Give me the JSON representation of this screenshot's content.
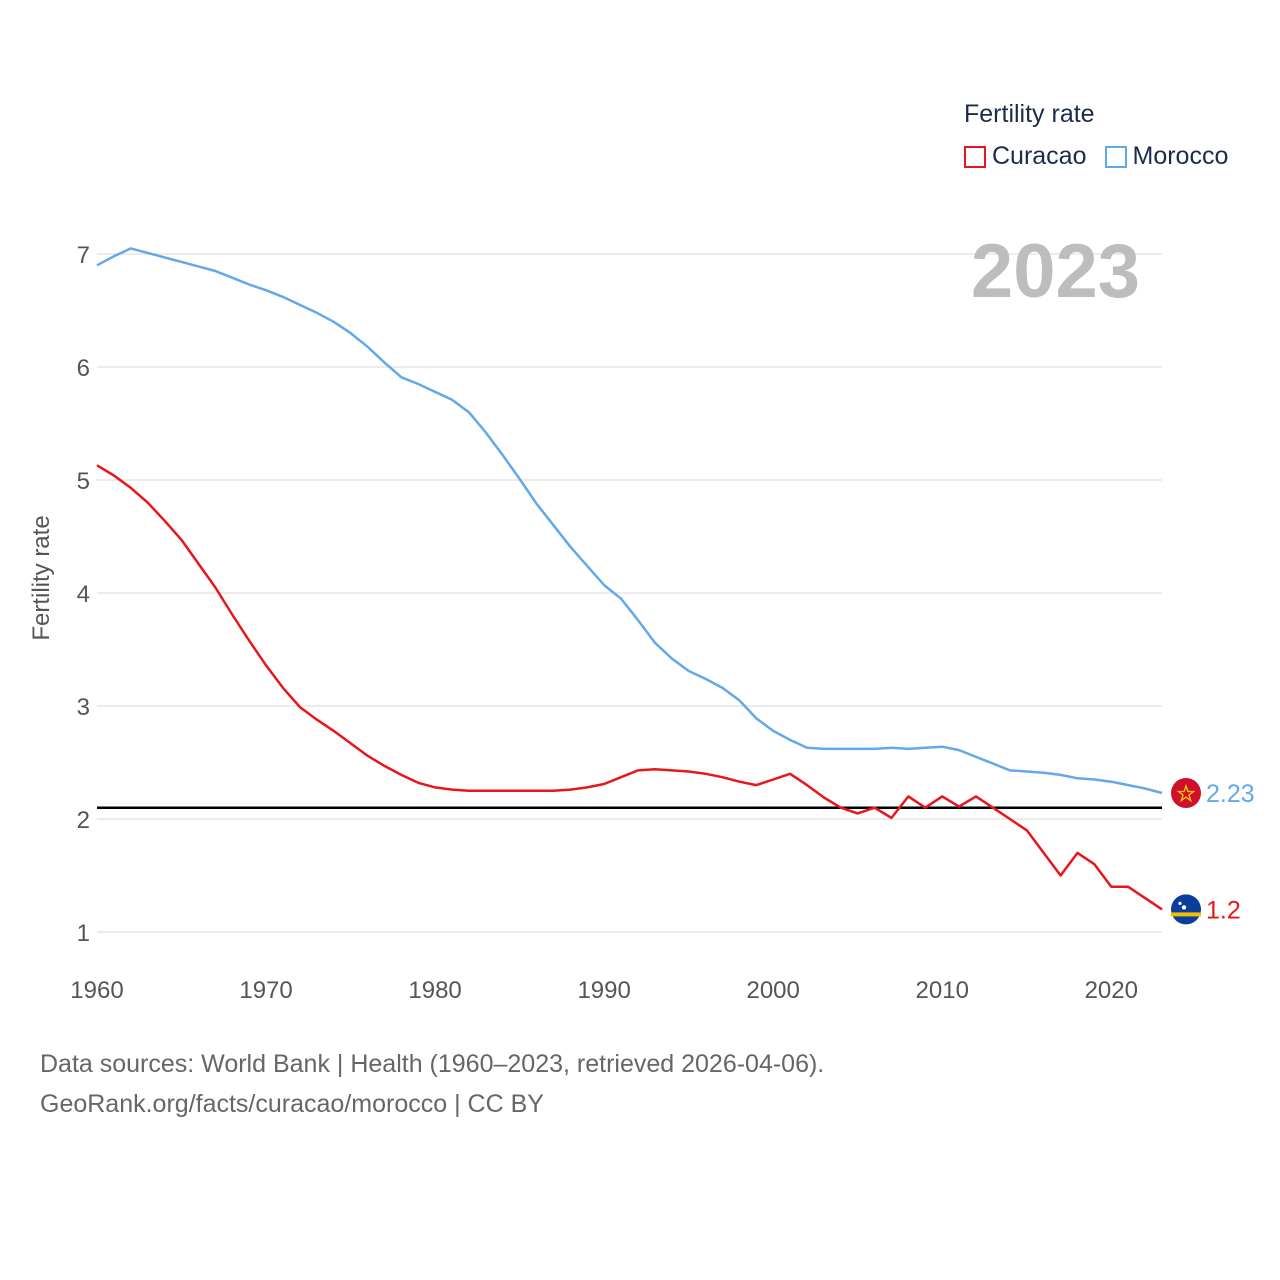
{
  "legend": {
    "title": "Fertility rate",
    "items": [
      {
        "label": "Curacao",
        "color": "#e8161b"
      },
      {
        "label": "Morocco",
        "color": "#63a8e8"
      }
    ]
  },
  "year_label": "2023",
  "footer": {
    "line1": "Data sources: World Bank | Health (1960–2023, retrieved 2026-04-06).",
    "line2": "GeoRank.org/facts/curacao/morocco | CC BY"
  },
  "chart_data": {
    "type": "line",
    "title": "",
    "xlabel": "",
    "ylabel": "Fertility rate",
    "xlim": [
      1960,
      2023
    ],
    "ylim": [
      1,
      7
    ],
    "xticks": [
      1960,
      1970,
      1980,
      1990,
      2000,
      2010,
      2020
    ],
    "yticks": [
      1,
      2,
      3,
      4,
      5,
      6,
      7
    ],
    "grid": true,
    "reference_line": 2.1,
    "x": [
      1960,
      1961,
      1962,
      1963,
      1964,
      1965,
      1966,
      1967,
      1968,
      1969,
      1970,
      1971,
      1972,
      1973,
      1974,
      1975,
      1976,
      1977,
      1978,
      1979,
      1980,
      1981,
      1982,
      1983,
      1984,
      1985,
      1986,
      1987,
      1988,
      1989,
      1990,
      1991,
      1992,
      1993,
      1994,
      1995,
      1996,
      1997,
      1998,
      1999,
      2000,
      2001,
      2002,
      2003,
      2004,
      2005,
      2006,
      2007,
      2008,
      2009,
      2010,
      2011,
      2012,
      2013,
      2014,
      2015,
      2016,
      2017,
      2018,
      2019,
      2020,
      2021,
      2022,
      2023
    ],
    "series": [
      {
        "name": "Curacao",
        "color": "#e8161b",
        "end_label": "1.2",
        "values": [
          5.13,
          5.04,
          4.93,
          4.8,
          4.64,
          4.47,
          4.26,
          4.05,
          3.81,
          3.58,
          3.36,
          3.16,
          2.99,
          2.88,
          2.78,
          2.67,
          2.56,
          2.47,
          2.39,
          2.32,
          2.28,
          2.26,
          2.25,
          2.25,
          2.25,
          2.25,
          2.25,
          2.25,
          2.26,
          2.28,
          2.31,
          2.37,
          2.43,
          2.44,
          2.43,
          2.42,
          2.4,
          2.37,
          2.33,
          2.3,
          2.35,
          2.4,
          2.3,
          2.19,
          2.1,
          2.05,
          2.1,
          2.01,
          2.2,
          2.1,
          2.2,
          2.11,
          2.2,
          2.1,
          2.0,
          1.9,
          1.7,
          1.5,
          1.7,
          1.6,
          1.4,
          1.4,
          1.3,
          1.2
        ]
      },
      {
        "name": "Morocco",
        "color": "#63a8e8",
        "end_label": "2.23",
        "values": [
          6.9,
          6.98,
          7.05,
          7.01,
          6.97,
          6.93,
          6.89,
          6.85,
          6.79,
          6.73,
          6.68,
          6.62,
          6.55,
          6.48,
          6.4,
          6.3,
          6.18,
          6.04,
          5.91,
          5.85,
          5.78,
          5.71,
          5.6,
          5.42,
          5.22,
          5.01,
          4.79,
          4.6,
          4.41,
          4.24,
          4.07,
          3.95,
          3.76,
          3.56,
          3.42,
          3.31,
          3.24,
          3.16,
          3.05,
          2.89,
          2.78,
          2.7,
          2.63,
          2.62,
          2.62,
          2.62,
          2.62,
          2.63,
          2.62,
          2.63,
          2.64,
          2.61,
          2.55,
          2.49,
          2.43,
          2.42,
          2.41,
          2.39,
          2.36,
          2.35,
          2.33,
          2.3,
          2.27,
          2.23
        ]
      }
    ]
  }
}
